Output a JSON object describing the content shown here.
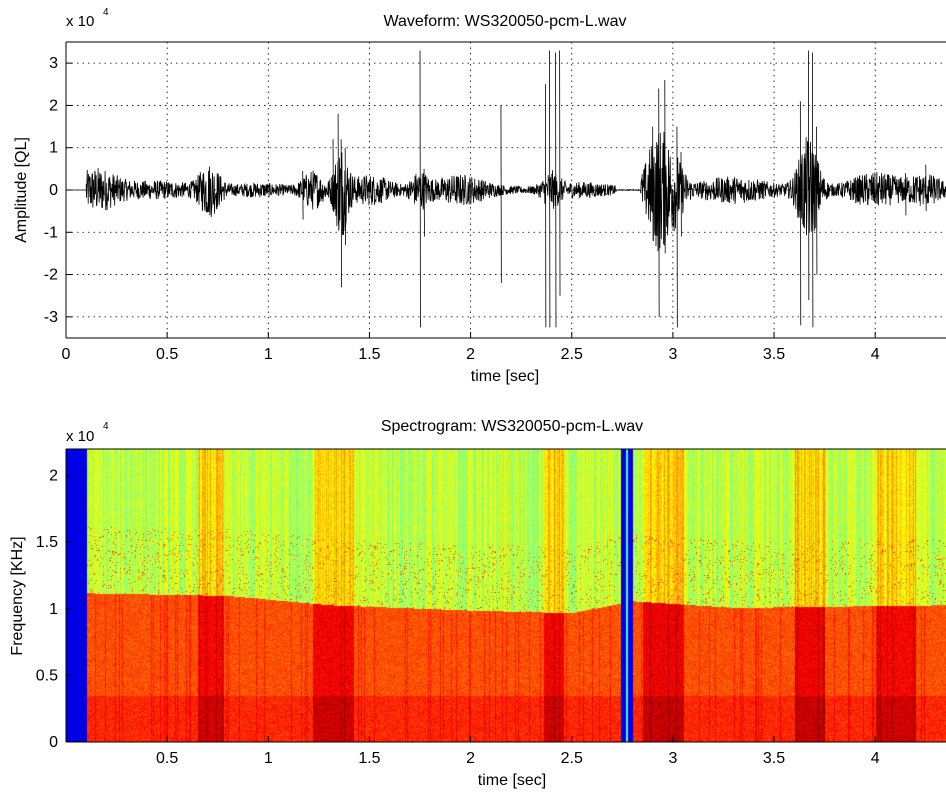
{
  "chart_data": [
    {
      "type": "line",
      "title": "Waveform: WS320050-pcm-L.wav",
      "xlabel": "time [sec]",
      "ylabel": "Amplitude [QL]",
      "y_multiplier": "x 10",
      "y_multiplier_exponent": "4",
      "xlim": [
        0,
        4.35
      ],
      "ylim": [
        -3.5,
        3.5
      ],
      "xticks": [
        "0",
        "0.5",
        "1",
        "1.5",
        "2",
        "2.5",
        "3",
        "3.5",
        "4"
      ],
      "xtick_values": [
        0,
        0.5,
        1,
        1.5,
        2,
        2.5,
        3,
        3.5,
        4
      ],
      "yticks": [
        "3",
        "2",
        "1",
        "0",
        "-1",
        "-2",
        "-3"
      ],
      "ytick_values": [
        3,
        2,
        1,
        0,
        -1,
        -2,
        -3
      ],
      "grid": true,
      "signal_start": 0.1,
      "signal_end": 4.35,
      "silent_gap": [
        2.72,
        2.84
      ],
      "envelope": [
        {
          "t": 0.15,
          "a": 0.45,
          "w": 0.12
        },
        {
          "t": 0.45,
          "a": 0.15,
          "w": 0.2
        },
        {
          "t": 0.71,
          "a": 0.55,
          "w": 0.06
        },
        {
          "t": 0.95,
          "a": 0.1,
          "w": 0.15
        },
        {
          "t": 1.22,
          "a": 0.4,
          "w": 0.06
        },
        {
          "t": 1.36,
          "a": 1.0,
          "w": 0.04
        },
        {
          "t": 1.5,
          "a": 0.3,
          "w": 0.12
        },
        {
          "t": 1.75,
          "a": 0.35,
          "w": 0.05
        },
        {
          "t": 1.95,
          "a": 0.3,
          "w": 0.15
        },
        {
          "t": 2.4,
          "a": 0.35,
          "w": 0.05
        },
        {
          "t": 2.55,
          "a": 0.12,
          "w": 0.15
        },
        {
          "t": 2.93,
          "a": 1.4,
          "w": 0.07
        },
        {
          "t": 3.02,
          "a": 0.5,
          "w": 0.05
        },
        {
          "t": 3.3,
          "a": 0.25,
          "w": 0.2
        },
        {
          "t": 3.67,
          "a": 1.2,
          "w": 0.06
        },
        {
          "t": 4.0,
          "a": 0.35,
          "w": 0.15
        },
        {
          "t": 4.25,
          "a": 0.3,
          "w": 0.1
        }
      ],
      "spikes": [
        {
          "t": 1.17,
          "hi": 0.45,
          "lo": -0.7
        },
        {
          "t": 1.32,
          "hi": 1.2,
          "lo": -0.5
        },
        {
          "t": 1.345,
          "hi": 1.8,
          "lo": -0.8
        },
        {
          "t": 1.36,
          "hi": 1.2,
          "lo": -2.3
        },
        {
          "t": 1.38,
          "hi": 1.0,
          "lo": -1.3
        },
        {
          "t": 1.75,
          "hi": 3.3,
          "lo": -3.25
        },
        {
          "t": 1.77,
          "hi": 0.5,
          "lo": -1.1
        },
        {
          "t": 2.15,
          "hi": 2.0,
          "lo": -2.2
        },
        {
          "t": 2.37,
          "hi": 2.5,
          "lo": -3.25
        },
        {
          "t": 2.39,
          "hi": 3.3,
          "lo": -3.25
        },
        {
          "t": 2.42,
          "hi": 3.25,
          "lo": -3.25
        },
        {
          "t": 2.44,
          "hi": 3.3,
          "lo": -2.5
        },
        {
          "t": 2.9,
          "hi": 1.5,
          "lo": -1.2
        },
        {
          "t": 2.93,
          "hi": 2.4,
          "lo": -3.0
        },
        {
          "t": 2.96,
          "hi": 2.6,
          "lo": -1.5
        },
        {
          "t": 3.02,
          "hi": 1.5,
          "lo": -3.25
        },
        {
          "t": 3.04,
          "hi": 0.9,
          "lo": -1.1
        },
        {
          "t": 3.63,
          "hi": 2.1,
          "lo": -3.2
        },
        {
          "t": 3.67,
          "hi": 3.3,
          "lo": -2.6
        },
        {
          "t": 3.69,
          "hi": 3.25,
          "lo": -3.25
        },
        {
          "t": 3.71,
          "hi": 1.5,
          "lo": -2.0
        },
        {
          "t": 4.15,
          "hi": 0.4,
          "lo": -0.6
        },
        {
          "t": 4.25,
          "hi": 0.6,
          "lo": -0.5
        }
      ]
    },
    {
      "type": "heatmap",
      "title": "Spectrogram: WS320050-pcm-L.wav",
      "xlabel": "time [sec]",
      "ylabel": "Frequency [KHz]",
      "y_multiplier": "x 10",
      "y_multiplier_exponent": "4",
      "xlim": [
        0,
        4.35
      ],
      "ylim": [
        0,
        2.2
      ],
      "xticks": [
        "0.5",
        "1",
        "1.5",
        "2",
        "2.5",
        "3",
        "3.5",
        "4"
      ],
      "xtick_values": [
        0.5,
        1,
        1.5,
        2,
        2.5,
        3,
        3.5,
        4
      ],
      "yticks": [
        "2",
        "1.5",
        "1",
        "0.5",
        "0"
      ],
      "ytick_values": [
        2,
        1.5,
        1,
        0.5,
        0
      ],
      "colormap": "jet",
      "silent_bands": [
        [
          0,
          0.1
        ],
        [
          2.74,
          2.8
        ]
      ],
      "energy_boundary": [
        {
          "t": 0.1,
          "f": 1.12
        },
        {
          "t": 0.8,
          "f": 1.1
        },
        {
          "t": 1.3,
          "f": 1.03
        },
        {
          "t": 2.0,
          "f": 0.99
        },
        {
          "t": 2.5,
          "f": 0.97
        },
        {
          "t": 2.8,
          "f": 1.06
        },
        {
          "t": 3.3,
          "f": 1.01
        },
        {
          "t": 4.35,
          "f": 1.03
        }
      ],
      "bright_regions": [
        {
          "t0": 0.65,
          "t1": 0.78,
          "level": 0.7
        },
        {
          "t0": 1.22,
          "t1": 1.42,
          "level": 0.75
        },
        {
          "t0": 2.36,
          "t1": 2.46,
          "level": 0.75
        },
        {
          "t0": 2.85,
          "t1": 3.05,
          "level": 0.8
        },
        {
          "t0": 3.6,
          "t1": 3.75,
          "level": 0.78
        },
        {
          "t0": 4.0,
          "t1": 4.2,
          "level": 0.7
        }
      ]
    }
  ]
}
